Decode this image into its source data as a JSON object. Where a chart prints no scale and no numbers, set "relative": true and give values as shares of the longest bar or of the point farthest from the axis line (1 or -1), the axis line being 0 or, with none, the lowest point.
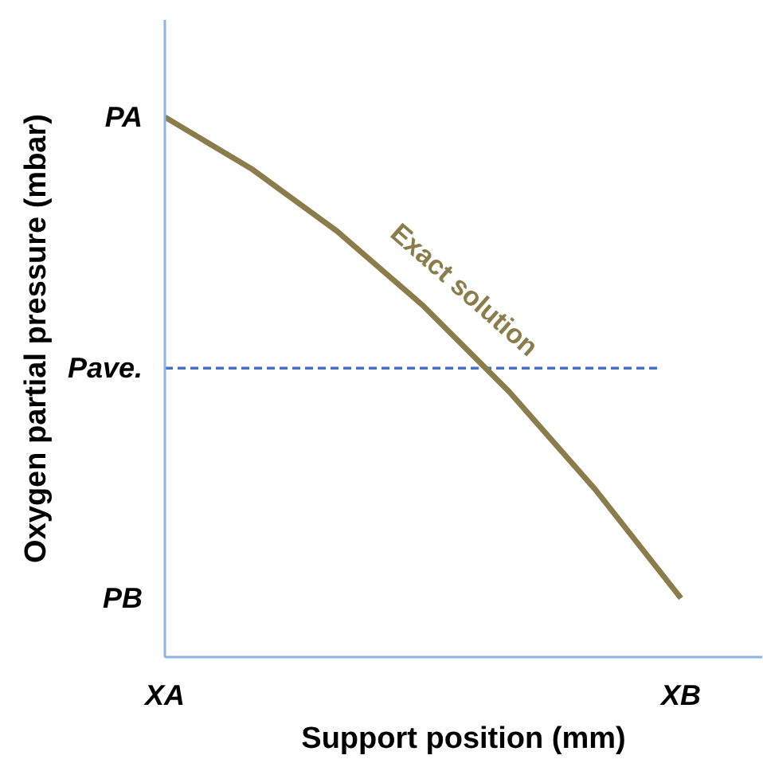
{
  "chart_data": {
    "type": "line",
    "relative": true,
    "xlabel": "Support position (mm)",
    "ylabel": "Oxygen partial pressure (mbar)",
    "categories": [
      "XA",
      null,
      null,
      null,
      null,
      null,
      "XB"
    ],
    "series": [
      {
        "color": "#8b7d4b",
        "values": [
          1,
          0.905,
          0.789,
          0.651,
          0.492,
          0.311,
          0.109
        ]
      }
    ],
    "ref_lines": [
      {
        "axis": "y",
        "value": 0.535,
        "label": "Pave.",
        "color": "#4472c4",
        "line_style": "dashed"
      }
    ],
    "annotations": [
      "Exact solution",
      "PA",
      "PB"
    ],
    "grid": false,
    "marker": "none"
  }
}
